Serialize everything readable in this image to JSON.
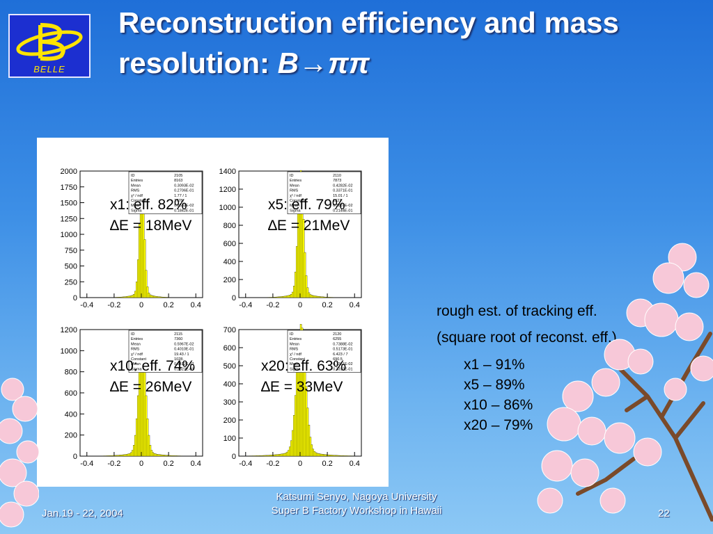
{
  "logo": {
    "letter": "B",
    "text": "BELLE"
  },
  "title": {
    "line1": "Reconstruction efficiency and mass",
    "line2_prefix": "resolution: ",
    "line2_symbol": "B→ππ"
  },
  "plots": [
    {
      "yticks": [
        "0",
        "250",
        "500",
        "750",
        "1000",
        "1250",
        "1500",
        "1750",
        "2000"
      ],
      "xticks": [
        "-0.4",
        "-0.2",
        "0",
        "0.2",
        "0.4"
      ],
      "stats": [
        [
          "ID",
          "2105"
        ],
        [
          "Entries",
          "8163"
        ],
        [
          "Mean",
          "0.3093E-02"
        ],
        [
          "RMS",
          "0.2706E-01"
        ],
        [
          "χ² / ndf",
          "1.77 / 1"
        ],
        [
          "Constant",
          "1778."
        ],
        [
          "Mean",
          "0.2532E-02"
        ],
        [
          "Sigma",
          "0.1842E-01"
        ]
      ],
      "label1": "x1: eff. 82%",
      "label2": "∆E = 18MeV"
    },
    {
      "yticks": [
        "0",
        "200",
        "400",
        "600",
        "800",
        "1000",
        "1200",
        "1400"
      ],
      "xticks": [
        "-0.4",
        "-0.2",
        "0",
        "0.2",
        "0.4"
      ],
      "stats": [
        [
          "ID",
          "2110"
        ],
        [
          "Entries",
          "7873"
        ],
        [
          "Mean",
          "0.4282E-02"
        ],
        [
          "RMS",
          "0.3371E-01"
        ],
        [
          "χ² / ndf",
          "15.01 / 1"
        ],
        [
          "Constant",
          "1327."
        ],
        [
          "Mean",
          "0.3837E-02"
        ],
        [
          "Sigma",
          "0.2144E-01"
        ]
      ],
      "label1": "x5: eff. 79%",
      "label2": "∆E = 21MeV"
    },
    {
      "yticks": [
        "0",
        "200",
        "400",
        "600",
        "800",
        "1000",
        "1200"
      ],
      "xticks": [
        "-0.4",
        "-0.2",
        "0",
        "0.2",
        "0.4"
      ],
      "stats": [
        [
          "ID",
          "2115"
        ],
        [
          "Entries",
          "7360"
        ],
        [
          "Mean",
          "0.5967E-02"
        ],
        [
          "RMS",
          "0.4010E-01"
        ],
        [
          "χ² / ndf",
          "19.43 / 1"
        ],
        [
          "Constant",
          "1028."
        ],
        [
          "Mean",
          "0.5412E-02"
        ],
        [
          "Sigma",
          "0.2623E-01"
        ]
      ],
      "label1": "x10: eff. 74%",
      "label2": "∆E = 26MeV"
    },
    {
      "yticks": [
        "0",
        "100",
        "200",
        "300",
        "400",
        "500",
        "600",
        "700"
      ],
      "xticks": [
        "-0.4",
        "-0.2",
        "0",
        "0.2",
        "0.4"
      ],
      "stats": [
        [
          "ID",
          "2120"
        ],
        [
          "Entries",
          "6255"
        ],
        [
          "Mean",
          "0.7388E-02"
        ],
        [
          "RMS",
          "0.5173E-01"
        ],
        [
          "χ² / ndf",
          "6.423 / 7"
        ],
        [
          "Constant",
          "690.5"
        ],
        [
          "Mean",
          "0.7361E-02"
        ],
        [
          "Sigma",
          "0.3312E-01"
        ]
      ],
      "label1": "x20: eff. 63%",
      "label2": "∆E = 33MeV"
    }
  ],
  "chart_data": [
    {
      "type": "bar",
      "xlim": [
        -0.45,
        0.45
      ],
      "ylim": [
        0,
        2000
      ],
      "peak": 1780,
      "sigma": 0.018,
      "mean": 0.003
    },
    {
      "type": "bar",
      "xlim": [
        -0.45,
        0.45
      ],
      "ylim": [
        0,
        1400
      ],
      "peak": 1330,
      "sigma": 0.021,
      "mean": 0.004
    },
    {
      "type": "bar",
      "xlim": [
        -0.45,
        0.45
      ],
      "ylim": [
        0,
        1200
      ],
      "peak": 1030,
      "sigma": 0.026,
      "mean": 0.005
    },
    {
      "type": "bar",
      "xlim": [
        -0.45,
        0.45
      ],
      "ylim": [
        0,
        700
      ],
      "peak": 690,
      "sigma": 0.033,
      "mean": 0.007
    }
  ],
  "side": {
    "line1": "rough est. of tracking eff.",
    "line2": "(square root of reconst. eff.)",
    "items": [
      "x1 – 91%",
      "x5 – 89%",
      "x10 – 86%",
      "x20 – 79%"
    ]
  },
  "footer": {
    "date": "Jan.19 - 22, 2004",
    "author": "Katsumi Senyo, Nagoya University",
    "event": "Super B Factory Workshop in Hawaii",
    "page": "22"
  },
  "colors": {
    "hist_fill": "#ffff00",
    "background_top": "#1f6fd8",
    "logo_bg": "#1c2fd0",
    "logo_fg": "#ffe400"
  }
}
